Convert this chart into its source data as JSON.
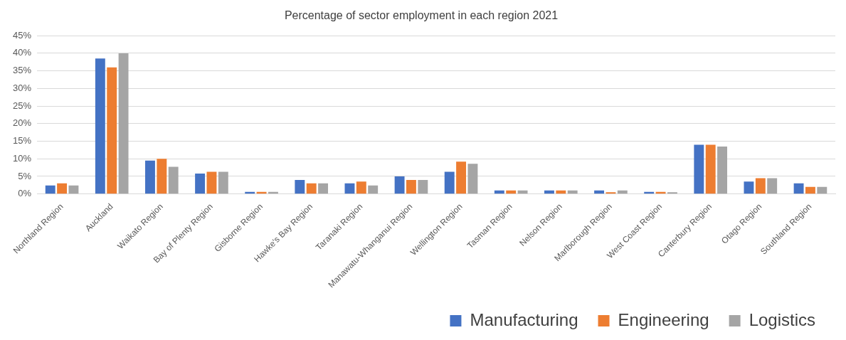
{
  "chart_data": {
    "type": "bar",
    "title": "Percentage of sector employment in each region 2021",
    "categories": [
      "Northland Region",
      "Auckland",
      "Waikato Region",
      "Bay of Plenty Region",
      "Gisborne Region",
      "Hawke's Bay Region",
      "Taranaki Region",
      "Manawatu-Whanganui Region",
      "Wellington Region",
      "Tasman Region",
      "Nelson Region",
      "Marlborough Region",
      "West Coast Region",
      "Canterbury Region",
      "Otago Region",
      "Southland Region"
    ],
    "series": [
      {
        "name": "Manufacturing",
        "color": "#4472c4",
        "values": [
          2.4,
          38.5,
          9.5,
          5.8,
          0.6,
          4,
          3,
          5,
          6.3,
          1,
          1,
          1,
          0.6,
          14,
          3.5,
          3
        ]
      },
      {
        "name": "Engineering",
        "color": "#ed7d31",
        "values": [
          3,
          36,
          10,
          6.3,
          0.6,
          3,
          3.5,
          4,
          9.2,
          1,
          1,
          0.5,
          0.6,
          14,
          4.5,
          2
        ]
      },
      {
        "name": "Logistics",
        "color": "#a5a5a5",
        "values": [
          2.4,
          40,
          7.7,
          6.3,
          0.6,
          3,
          2.4,
          4,
          8.6,
          1,
          1,
          1,
          0.5,
          13.5,
          4.5,
          2
        ]
      }
    ],
    "ylim": [
      0,
      45
    ],
    "yticks": [
      {
        "value": 0,
        "label": "0%"
      },
      {
        "value": 5,
        "label": "5%"
      },
      {
        "value": 10,
        "label": "10%"
      },
      {
        "value": 15,
        "label": "15%"
      },
      {
        "value": 20,
        "label": "20%"
      },
      {
        "value": 25,
        "label": "25%"
      },
      {
        "value": 30,
        "label": "30%"
      },
      {
        "value": 35,
        "label": "35%"
      },
      {
        "value": 40,
        "label": "40%"
      },
      {
        "value": 45,
        "label": "45%"
      }
    ],
    "grid": "y",
    "legend": "bottom right"
  }
}
